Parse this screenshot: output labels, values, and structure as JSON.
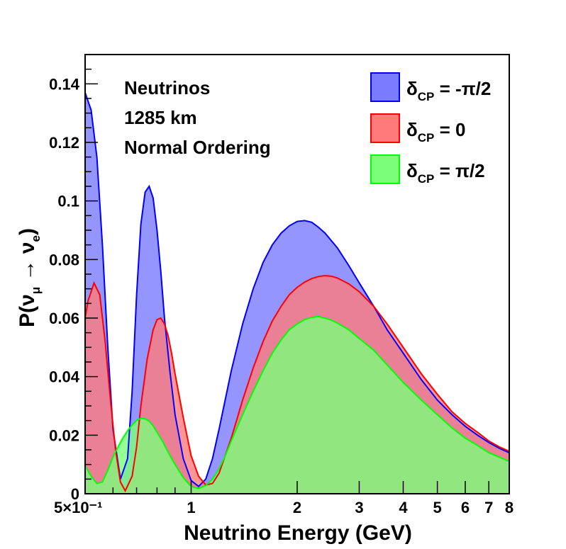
{
  "chart_data": {
    "type": "area",
    "xscale": "log",
    "xlim": [
      0.5,
      8
    ],
    "ylim": [
      0,
      0.15
    ],
    "xlabel": "Neutrino Energy (GeV)",
    "ylabel": {
      "prefix": "P(",
      "nu1": "ν",
      "sub1": "μ",
      "arrow": " → ",
      "nu2": "ν",
      "sub2": "e",
      "suffix": ")"
    },
    "x_ticks": [
      {
        "value": 0.5,
        "label": "5×10⁻¹"
      },
      {
        "value": 1,
        "label": "1"
      },
      {
        "value": 2,
        "label": "2"
      },
      {
        "value": 3,
        "label": "3"
      },
      {
        "value": 4,
        "label": "4"
      },
      {
        "value": 5,
        "label": "5"
      },
      {
        "value": 6,
        "label": "6"
      },
      {
        "value": 7,
        "label": "7"
      },
      {
        "value": 8,
        "label": "8"
      }
    ],
    "y_ticks": [
      {
        "value": 0,
        "label": "0"
      },
      {
        "value": 0.02,
        "label": "0.02"
      },
      {
        "value": 0.04,
        "label": "0.04"
      },
      {
        "value": 0.06,
        "label": "0.06"
      },
      {
        "value": 0.08,
        "label": "0.08"
      },
      {
        "value": 0.1,
        "label": "0.1"
      },
      {
        "value": 0.12,
        "label": "0.12"
      },
      {
        "value": 0.14,
        "label": "0.14"
      }
    ],
    "annotations": [
      "Neutrinos",
      "1285 km",
      "Normal Ordering"
    ],
    "series": [
      {
        "name": "δCP = -π/2",
        "legend_symbol": "δ",
        "legend_sub": "CP",
        "legend_value": " = -π/2",
        "fill": "#7b7bff",
        "line": "#0000ff",
        "x": [
          0.5,
          0.52,
          0.54,
          0.56,
          0.58,
          0.6,
          0.63,
          0.66,
          0.68,
          0.7,
          0.72,
          0.74,
          0.76,
          0.78,
          0.8,
          0.82,
          0.84,
          0.87,
          0.9,
          0.95,
          1.0,
          1.05,
          1.1,
          1.15,
          1.2,
          1.3,
          1.4,
          1.5,
          1.6,
          1.7,
          1.8,
          1.9,
          2.0,
          2.1,
          2.2,
          2.3,
          2.4,
          2.6,
          2.8,
          3.0,
          3.3,
          3.6,
          4.0,
          4.5,
          5.0,
          5.5,
          6.0,
          6.5,
          7.0,
          7.5,
          8.0
        ],
        "values": [
          0.137,
          0.131,
          0.115,
          0.085,
          0.05,
          0.022,
          0.005,
          0.012,
          0.035,
          0.068,
          0.092,
          0.103,
          0.105,
          0.101,
          0.09,
          0.076,
          0.06,
          0.042,
          0.027,
          0.012,
          0.0045,
          0.0025,
          0.005,
          0.012,
          0.022,
          0.042,
          0.058,
          0.07,
          0.079,
          0.085,
          0.089,
          0.0915,
          0.093,
          0.0933,
          0.0927,
          0.091,
          0.089,
          0.084,
          0.078,
          0.072,
          0.064,
          0.056,
          0.048,
          0.039,
          0.032,
          0.027,
          0.023,
          0.02,
          0.0175,
          0.0155,
          0.014
        ]
      },
      {
        "name": "δCP = 0",
        "legend_symbol": "δ",
        "legend_sub": "CP",
        "legend_value": " = 0",
        "fill": "#ff7b7b",
        "line": "#ff0000",
        "x": [
          0.5,
          0.51,
          0.53,
          0.55,
          0.57,
          0.59,
          0.61,
          0.63,
          0.65,
          0.68,
          0.7,
          0.72,
          0.75,
          0.78,
          0.8,
          0.82,
          0.84,
          0.86,
          0.88,
          0.9,
          0.95,
          1.0,
          1.05,
          1.1,
          1.15,
          1.2,
          1.3,
          1.4,
          1.5,
          1.6,
          1.7,
          1.8,
          1.9,
          2.0,
          2.1,
          2.2,
          2.3,
          2.4,
          2.5,
          2.6,
          2.8,
          3.0,
          3.3,
          3.6,
          4.0,
          4.5,
          5.0,
          5.5,
          6.0,
          6.5,
          7.0,
          7.5,
          8.0
        ],
        "values": [
          0.06,
          0.066,
          0.072,
          0.068,
          0.052,
          0.032,
          0.015,
          0.004,
          0.001,
          0.006,
          0.016,
          0.03,
          0.046,
          0.056,
          0.0595,
          0.06,
          0.058,
          0.054,
          0.048,
          0.041,
          0.026,
          0.013,
          0.006,
          0.003,
          0.0035,
          0.007,
          0.019,
          0.032,
          0.043,
          0.052,
          0.059,
          0.064,
          0.068,
          0.0705,
          0.0723,
          0.0735,
          0.0742,
          0.0745,
          0.0743,
          0.0737,
          0.0717,
          0.069,
          0.064,
          0.058,
          0.05,
          0.041,
          0.034,
          0.028,
          0.024,
          0.021,
          0.018,
          0.016,
          0.0145
        ]
      },
      {
        "name": "δCP = π/2",
        "legend_symbol": "δ",
        "legend_sub": "CP",
        "legend_value": " = π/2",
        "fill": "#7bff7b",
        "line": "#00ff00",
        "x": [
          0.5,
          0.52,
          0.54,
          0.56,
          0.58,
          0.6,
          0.62,
          0.64,
          0.66,
          0.68,
          0.7,
          0.72,
          0.74,
          0.76,
          0.78,
          0.8,
          0.83,
          0.86,
          0.9,
          0.95,
          1.0,
          1.05,
          1.1,
          1.15,
          1.2,
          1.25,
          1.3,
          1.4,
          1.5,
          1.6,
          1.7,
          1.8,
          1.9,
          2.0,
          2.1,
          2.2,
          2.3,
          2.4,
          2.5,
          2.6,
          2.8,
          3.0,
          3.3,
          3.6,
          4.0,
          4.5,
          5.0,
          5.5,
          6.0,
          6.5,
          7.0,
          7.5,
          8.0
        ],
        "values": [
          0.0095,
          0.006,
          0.0035,
          0.004,
          0.008,
          0.0125,
          0.016,
          0.019,
          0.0215,
          0.0235,
          0.025,
          0.0258,
          0.0256,
          0.0248,
          0.0232,
          0.021,
          0.0178,
          0.0142,
          0.01,
          0.0055,
          0.0025,
          0.0018,
          0.0028,
          0.005,
          0.0085,
          0.013,
          0.018,
          0.027,
          0.035,
          0.042,
          0.048,
          0.0525,
          0.056,
          0.058,
          0.0595,
          0.0603,
          0.0605,
          0.06,
          0.0593,
          0.0583,
          0.056,
          0.053,
          0.049,
          0.044,
          0.038,
          0.032,
          0.027,
          0.0225,
          0.019,
          0.0165,
          0.014,
          0.0125,
          0.011
        ]
      }
    ]
  }
}
